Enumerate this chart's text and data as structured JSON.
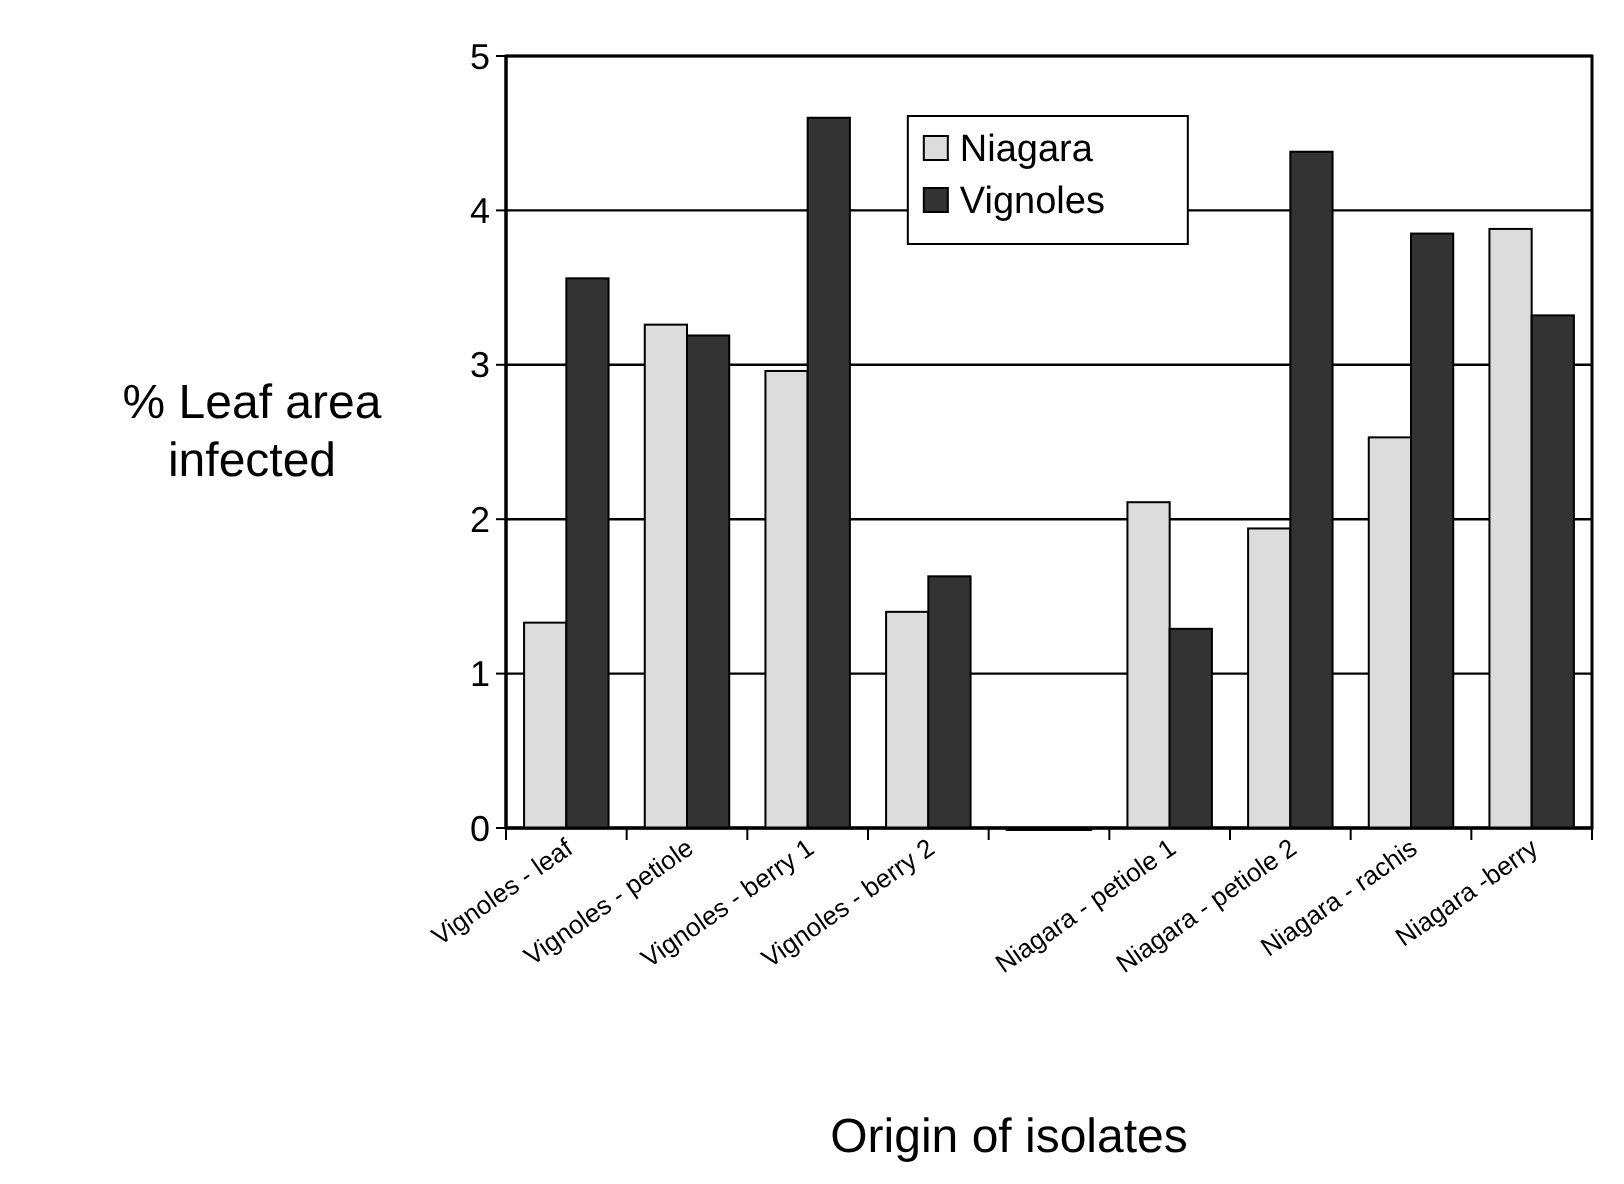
{
  "chart_data": {
    "type": "bar",
    "xlabel": "Origin of isolates",
    "ylabel": "% Leaf area infected",
    "categories": [
      "Vignoles - leaf",
      "Vignoles - petiole",
      "Vignoles - berry 1",
      "Vignoles - berry 2",
      null,
      "Niagara - petiole 1",
      "Niagara - petiole 2",
      "Niagara - rachis",
      "Niagara -berry"
    ],
    "series": [
      {
        "name": "Niagara",
        "color": "#dcdcdc",
        "values": [
          1.33,
          3.26,
          2.96,
          1.4,
          0,
          2.11,
          1.94,
          2.53,
          3.88
        ]
      },
      {
        "name": "Vignoles",
        "color": "#333333",
        "values": [
          3.56,
          3.19,
          4.6,
          1.63,
          0,
          1.29,
          4.38,
          3.85,
          3.32
        ]
      }
    ],
    "ylim": [
      0,
      5
    ],
    "yticks": [
      0,
      1,
      2,
      3,
      4,
      5
    ],
    "grid": "y",
    "legend": "top right"
  }
}
